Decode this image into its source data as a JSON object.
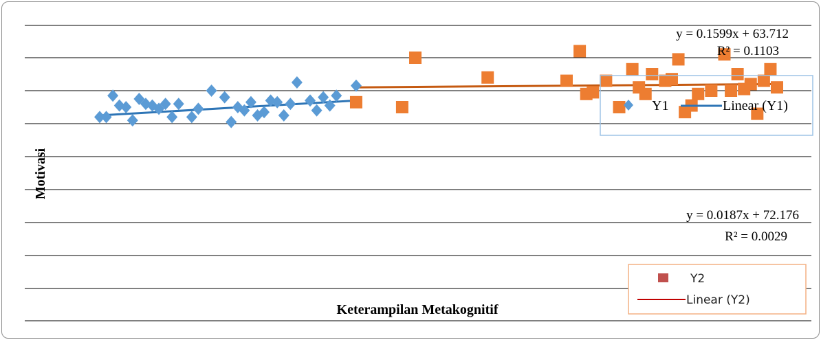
{
  "chart_data": {
    "type": "scatter",
    "xlabel": "Keterampilan Metakognitif",
    "ylabel": "Motivasi",
    "grid": true,
    "colors": {
      "Y1": "#5b9bd5",
      "Y1_trend": "#2e75b6",
      "Y2": "#ed7d31",
      "Y2_trend": "#c55a11",
      "Y2_legend_marker": "#c0504d",
      "Y2_legend_line": "#c00000",
      "legend1_border": "#9dc3e6",
      "legend2_border": "#f4b183"
    },
    "series": [
      {
        "name": "Y1",
        "marker": "diamond",
        "points": [
          [
            1,
            2.4
          ],
          [
            2,
            2.4
          ],
          [
            3,
            3.7
          ],
          [
            4,
            3.1
          ],
          [
            5,
            3.0
          ],
          [
            6,
            2.2
          ],
          [
            7,
            3.5
          ],
          [
            8,
            3.2
          ],
          [
            9,
            3.1
          ],
          [
            10,
            2.9
          ],
          [
            11,
            3.2
          ],
          [
            12,
            2.4
          ],
          [
            13,
            3.2
          ],
          [
            15,
            2.4
          ],
          [
            16,
            2.9
          ],
          [
            18,
            4.0
          ],
          [
            20,
            3.6
          ],
          [
            21,
            2.1
          ],
          [
            22,
            3.0
          ],
          [
            23,
            2.8
          ],
          [
            24,
            3.3
          ],
          [
            25,
            2.5
          ],
          [
            26,
            2.7
          ],
          [
            27,
            3.4
          ],
          [
            28,
            3.3
          ],
          [
            29,
            2.5
          ],
          [
            30,
            3.2
          ],
          [
            31,
            4.5
          ],
          [
            33,
            3.4
          ],
          [
            34,
            2.8
          ],
          [
            35,
            3.6
          ],
          [
            36,
            3.1
          ],
          [
            37,
            3.7
          ],
          [
            40,
            4.3
          ]
        ],
        "trendline": {
          "name": "Linear (Y1)",
          "x": [
            1,
            40
          ],
          "y": [
            2.5,
            3.4
          ]
        }
      },
      {
        "name": "Y2",
        "marker": "square",
        "points": [
          [
            40,
            3.3
          ],
          [
            47,
            3.0
          ],
          [
            49,
            6.0
          ],
          [
            60,
            4.8
          ],
          [
            72,
            4.6
          ],
          [
            74,
            6.4
          ],
          [
            75,
            3.8
          ],
          [
            76,
            3.9
          ],
          [
            78,
            4.6
          ],
          [
            80,
            3.0
          ],
          [
            82,
            5.3
          ],
          [
            83,
            4.2
          ],
          [
            84,
            3.8
          ],
          [
            85,
            5.0
          ],
          [
            87,
            4.6
          ],
          [
            88,
            4.7
          ],
          [
            89,
            5.9
          ],
          [
            90,
            2.7
          ],
          [
            91,
            3.1
          ],
          [
            92,
            3.8
          ],
          [
            94,
            4.0
          ],
          [
            96,
            6.2
          ],
          [
            97,
            4.0
          ],
          [
            98,
            5.0
          ],
          [
            99,
            4.1
          ],
          [
            100,
            4.4
          ],
          [
            101,
            2.6
          ],
          [
            102,
            4.6
          ],
          [
            103,
            5.3
          ],
          [
            104,
            4.2
          ]
        ],
        "trendline": {
          "name": "Linear (Y2)",
          "x": [
            40,
            104
          ],
          "y": [
            4.2,
            4.4
          ]
        }
      }
    ],
    "annotations": [
      {
        "line1": "y = 0.1599x + 63.712",
        "line2": "R² = 0.1103"
      },
      {
        "line1": "y = 0.0187x + 72.176",
        "line2": "R² = 0.0029"
      }
    ],
    "legends": [
      {
        "marker_label": "Y1",
        "line_label": "Linear (Y1)"
      },
      {
        "marker_label": "Y2",
        "line_label": "Linear (Y2)"
      }
    ]
  }
}
